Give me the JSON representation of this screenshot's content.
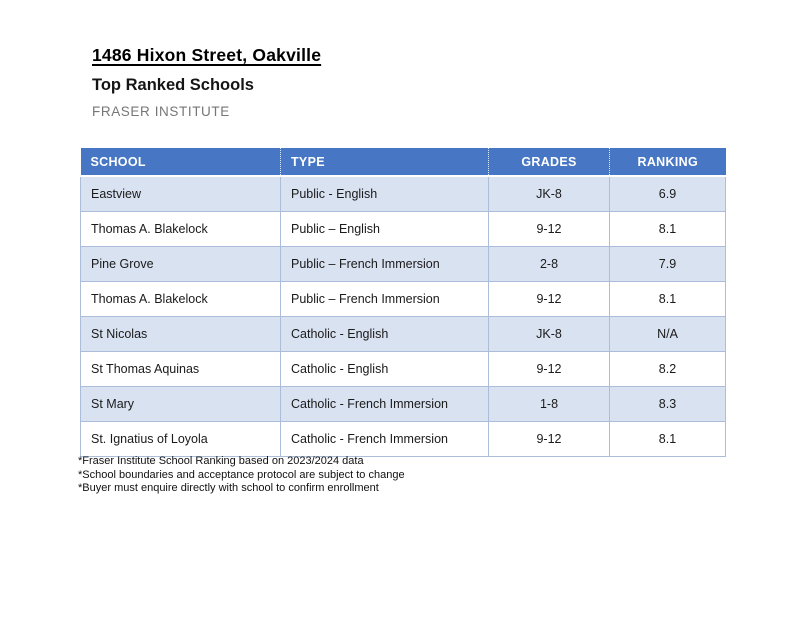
{
  "page": {
    "title": "1486 Hixon Street, Oakville",
    "subtitle": "Top Ranked Schools",
    "source": "FRASER INSTITUTE"
  },
  "colors": {
    "header_bg": "#4777C4",
    "header_text": "#FFFFFF",
    "row_alt_bg": "#D9E2F1",
    "row_bg": "#FFFFFF",
    "border": "#ABBDD8",
    "source_text": "#767676"
  },
  "table": {
    "headers": [
      "SCHOOL",
      "TYPE",
      "GRADES",
      "RANKING"
    ],
    "rows": [
      {
        "school": "Eastview",
        "type": "Public - English",
        "grades": "JK-8",
        "ranking": "6.9"
      },
      {
        "school": "Thomas A. Blakelock",
        "type": "Public – English",
        "grades": "9-12",
        "ranking": "8.1"
      },
      {
        "school": "Pine Grove",
        "type": "Public – French Immersion",
        "grades": "2-8",
        "ranking": "7.9"
      },
      {
        "school": "Thomas A. Blakelock",
        "type": "Public – French Immersion",
        "grades": "9-12",
        "ranking": "8.1"
      },
      {
        "school": "St Nicolas",
        "type": "Catholic - English",
        "grades": "JK-8",
        "ranking": "N/A"
      },
      {
        "school": "St Thomas Aquinas",
        "type": "Catholic - English",
        "grades": "9-12",
        "ranking": "8.2"
      },
      {
        "school": "St Mary",
        "type": "Catholic - French Immersion",
        "grades": "1-8",
        "ranking": "8.3"
      },
      {
        "school": "St. Ignatius of Loyola",
        "type": "Catholic - French Immersion",
        "grades": "9-12",
        "ranking": "8.1"
      }
    ]
  },
  "footnotes": [
    "*Fraser Institute School Ranking based on 2023/2024 data",
    "*School boundaries and acceptance protocol are subject to change",
    "*Buyer must enquire directly with school to confirm enrollment"
  ]
}
